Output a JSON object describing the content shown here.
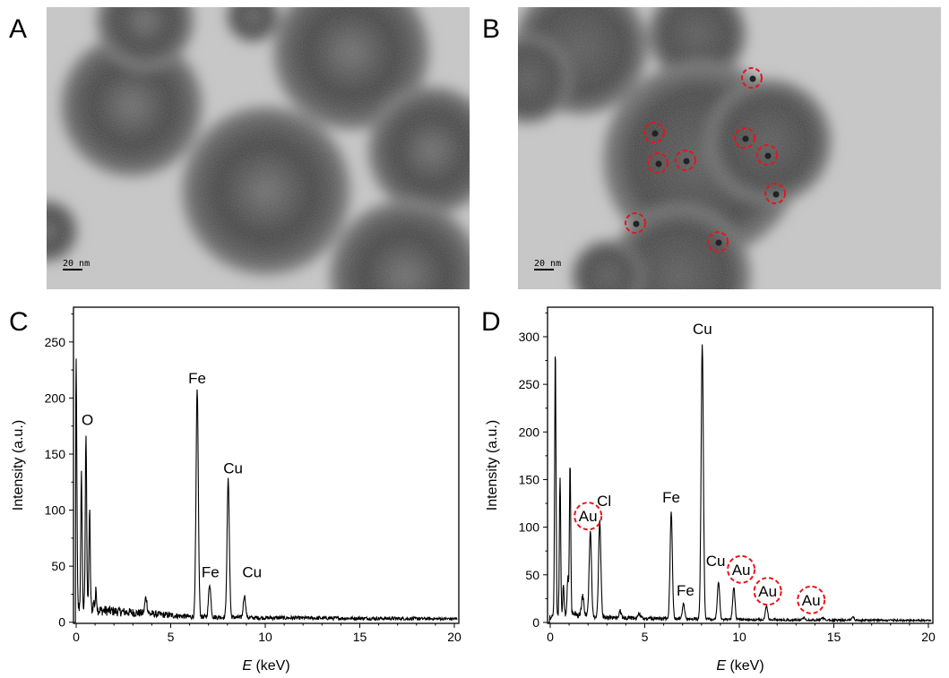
{
  "panels": {
    "a": {
      "label": "A",
      "scale_bar": "20 nm"
    },
    "b": {
      "label": "B",
      "scale_bar": "20 nm"
    },
    "c": {
      "label": "C"
    },
    "d": {
      "label": "D"
    }
  },
  "colors": {
    "line": "#000000",
    "highlight": "#e8141b",
    "tem_background": "#c9c9c9"
  },
  "chart_data": [
    {
      "id": "c",
      "type": "line",
      "title": "",
      "xlabel_italic": "E",
      "xlabel_unit": " (keV)",
      "ylabel": "Intensity (a.u.)",
      "xlim": [
        -0.15,
        20.2
      ],
      "ylim": [
        -1,
        281
      ],
      "xticks": [
        0,
        5,
        10,
        15,
        20
      ],
      "yticks": [
        0,
        50,
        100,
        150,
        200,
        250
      ],
      "baseline": [
        [
          0,
          14
        ],
        [
          1,
          11
        ],
        [
          3.5,
          8
        ],
        [
          6,
          5
        ],
        [
          9.5,
          4
        ],
        [
          20,
          3
        ]
      ],
      "peaks": [
        {
          "E": 0.0,
          "I": 233
        },
        {
          "E": 0.28,
          "I": 131
        },
        {
          "E": 0.52,
          "I": 170
        },
        {
          "E": 0.71,
          "I": 100
        },
        {
          "E": 0.93,
          "I": 18
        },
        {
          "E": 1.05,
          "I": 28
        },
        {
          "E": 3.69,
          "I": 22
        },
        {
          "E": 6.4,
          "I": 207
        },
        {
          "E": 7.06,
          "I": 34
        },
        {
          "E": 8.04,
          "I": 127
        },
        {
          "E": 8.9,
          "I": 24
        }
      ],
      "annotations": [
        {
          "text": "O",
          "E": 0.6,
          "I": 176,
          "circled": false
        },
        {
          "text": "Fe",
          "E": 6.4,
          "I": 213,
          "circled": false
        },
        {
          "text": "Fe",
          "E": 7.1,
          "I": 40,
          "circled": false
        },
        {
          "text": "Cu",
          "E": 8.3,
          "I": 133,
          "circled": false
        },
        {
          "text": "Cu",
          "E": 9.3,
          "I": 40,
          "circled": false
        }
      ]
    },
    {
      "id": "d",
      "type": "line",
      "title": "",
      "xlabel_italic": "E",
      "xlabel_unit": " (keV)",
      "ylabel": "Intensity (a.u.)",
      "xlim": [
        -0.15,
        20.2
      ],
      "ylim": [
        -1,
        331
      ],
      "xticks": [
        0,
        5,
        10,
        15,
        20
      ],
      "yticks": [
        0,
        50,
        100,
        150,
        200,
        250,
        300
      ],
      "baseline": [
        [
          0,
          6
        ],
        [
          1,
          9
        ],
        [
          3,
          5
        ],
        [
          6,
          4
        ],
        [
          10,
          3
        ],
        [
          20,
          2
        ]
      ],
      "peaks": [
        {
          "E": 0.27,
          "I": 288
        },
        {
          "E": 0.52,
          "I": 150
        },
        {
          "E": 0.7,
          "I": 43
        },
        {
          "E": 0.93,
          "I": 47
        },
        {
          "E": 1.05,
          "I": 170
        },
        {
          "E": 1.72,
          "I": 28
        },
        {
          "E": 2.12,
          "I": 96
        },
        {
          "E": 2.62,
          "I": 108
        },
        {
          "E": 3.69,
          "I": 12
        },
        {
          "E": 4.7,
          "I": 9
        },
        {
          "E": 6.4,
          "I": 115
        },
        {
          "E": 7.05,
          "I": 19
        },
        {
          "E": 8.04,
          "I": 292
        },
        {
          "E": 8.9,
          "I": 43
        },
        {
          "E": 9.71,
          "I": 37
        },
        {
          "E": 11.44,
          "I": 18
        },
        {
          "E": 13.4,
          "I": 5
        },
        {
          "E": 14.4,
          "I": 5
        },
        {
          "E": 16.0,
          "I": 6
        }
      ],
      "annotations": [
        {
          "text": "Au",
          "E": 2.0,
          "I": 106,
          "circled": true
        },
        {
          "text": "Cl",
          "E": 2.85,
          "I": 122,
          "circled": false
        },
        {
          "text": "Fe",
          "E": 6.4,
          "I": 126,
          "circled": false
        },
        {
          "text": "Fe",
          "E": 7.15,
          "I": 28,
          "circled": false
        },
        {
          "text": "Cu",
          "E": 8.05,
          "I": 303,
          "circled": false
        },
        {
          "text": "Cu",
          "E": 8.75,
          "I": 59,
          "circled": false
        },
        {
          "text": "Au",
          "E": 10.1,
          "I": 50,
          "circled": true
        },
        {
          "text": "Au",
          "E": 11.5,
          "I": 27,
          "circled": true
        },
        {
          "text": "Au",
          "E": 13.8,
          "I": 18,
          "circled": true
        }
      ]
    }
  ]
}
